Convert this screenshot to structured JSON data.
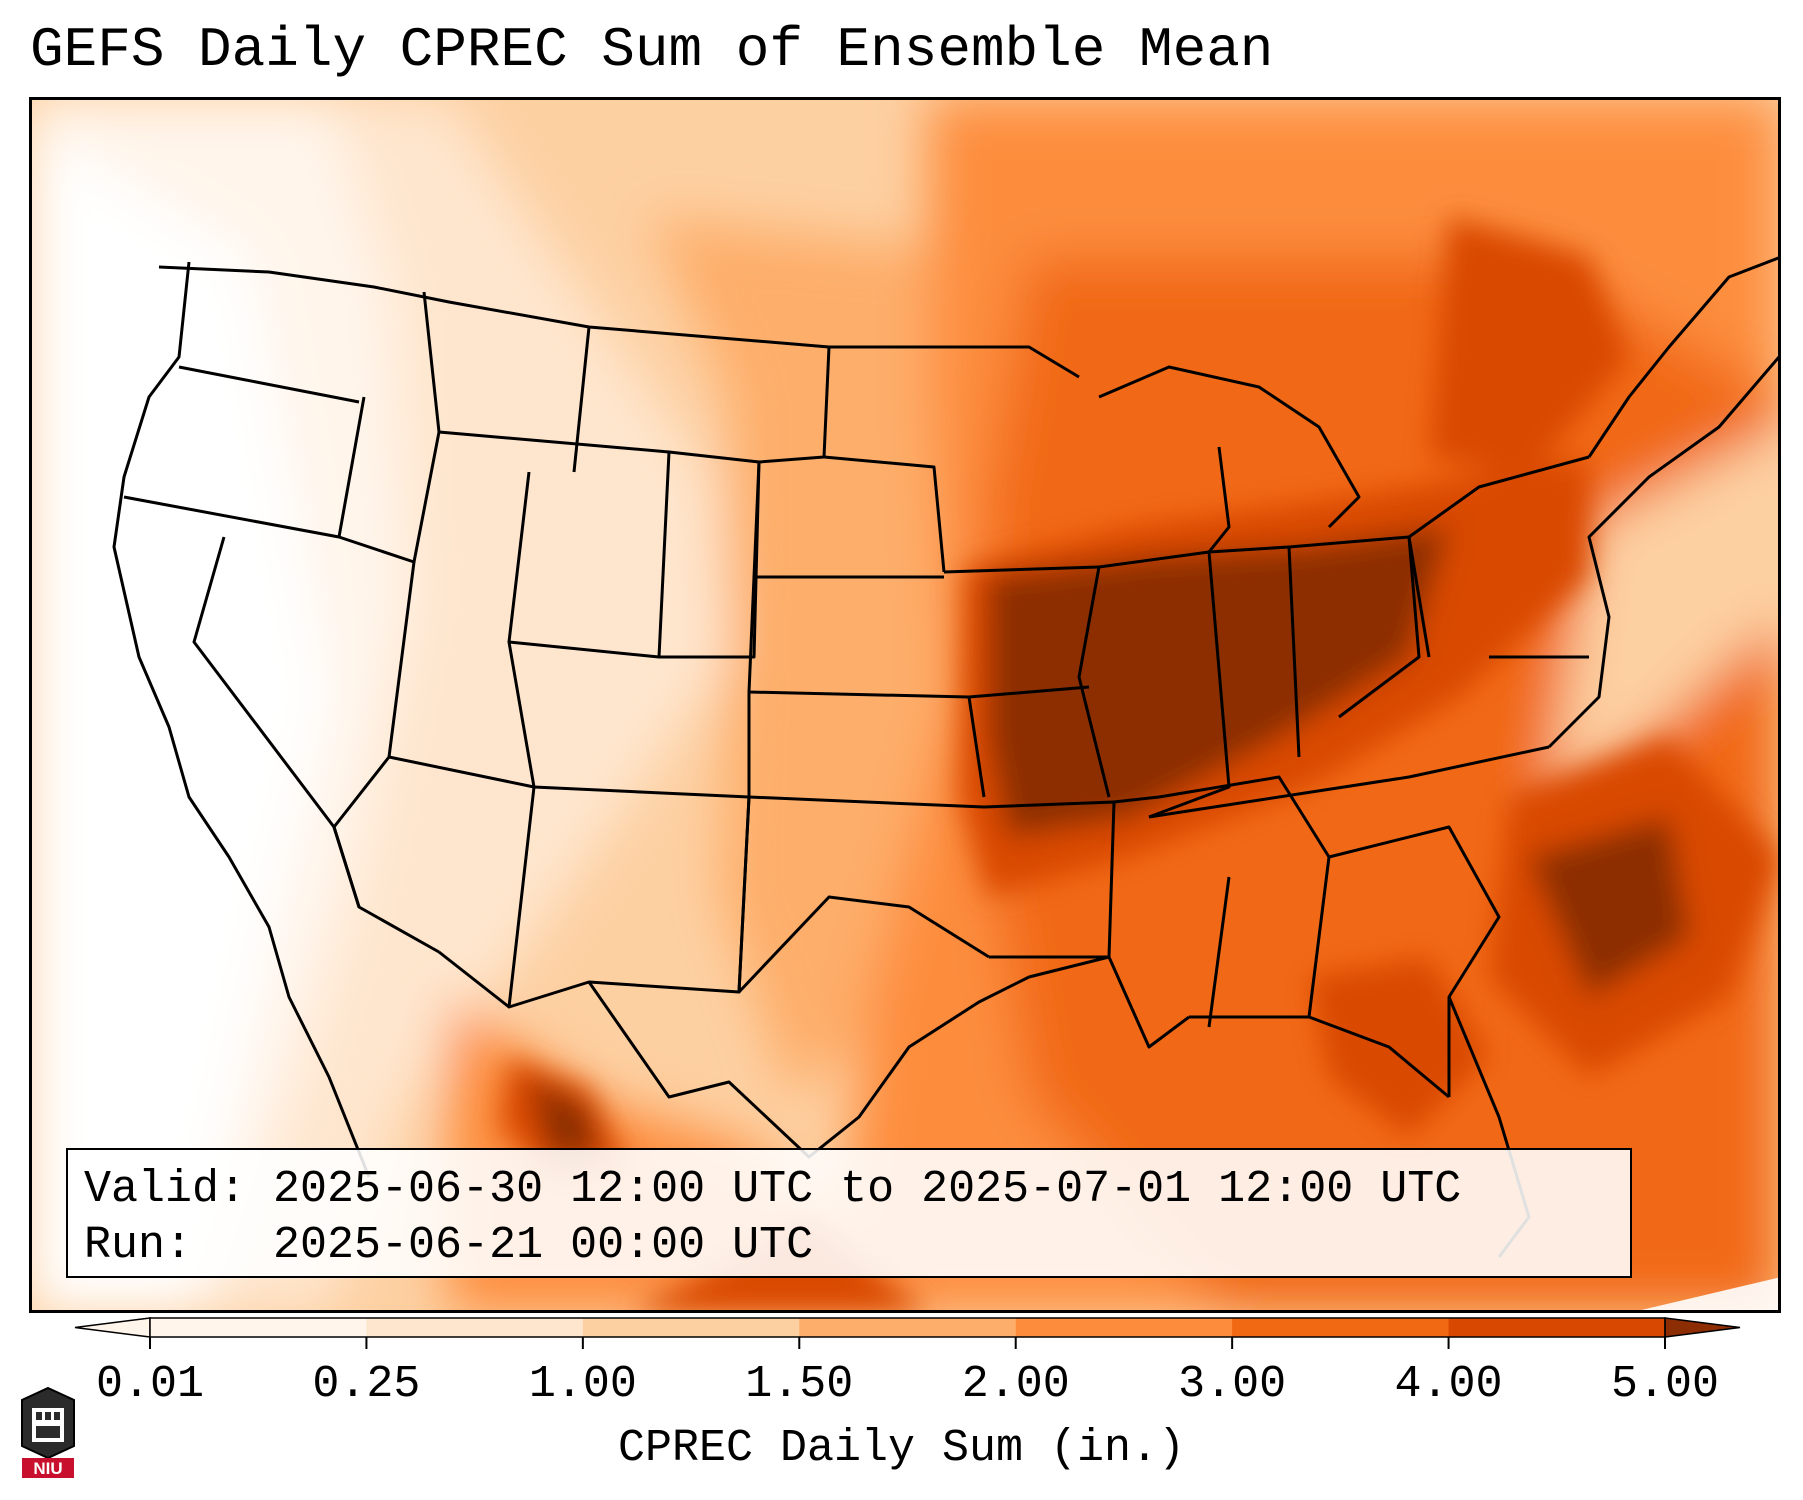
{
  "title": "GEFS Daily CPREC Sum of Ensemble Mean",
  "info": {
    "valid_line": "Valid: 2025-06-30 12:00 UTC to 2025-07-01 12:00 UTC",
    "run_line": "Run:   2025-06-21 00:00 UTC"
  },
  "colorbar": {
    "title": "CPREC Daily Sum (in.)",
    "ticks": [
      "0.01",
      "0.25",
      "1.00",
      "1.50",
      "2.00",
      "3.00",
      "4.00",
      "5.00"
    ],
    "colors": [
      "#fff5eb",
      "#fee6ce",
      "#fdd0a2",
      "#fdae6b",
      "#fd8d3c",
      "#f16913",
      "#d94801",
      "#8c2d04"
    ],
    "extend": "both"
  },
  "logo": {
    "text": "NIU",
    "color": "#c8102e"
  },
  "map": {
    "region": "Contiguous United States",
    "palette": "oranges",
    "heaviest_area": "Mid-Mississippi and Ohio Valleys"
  }
}
